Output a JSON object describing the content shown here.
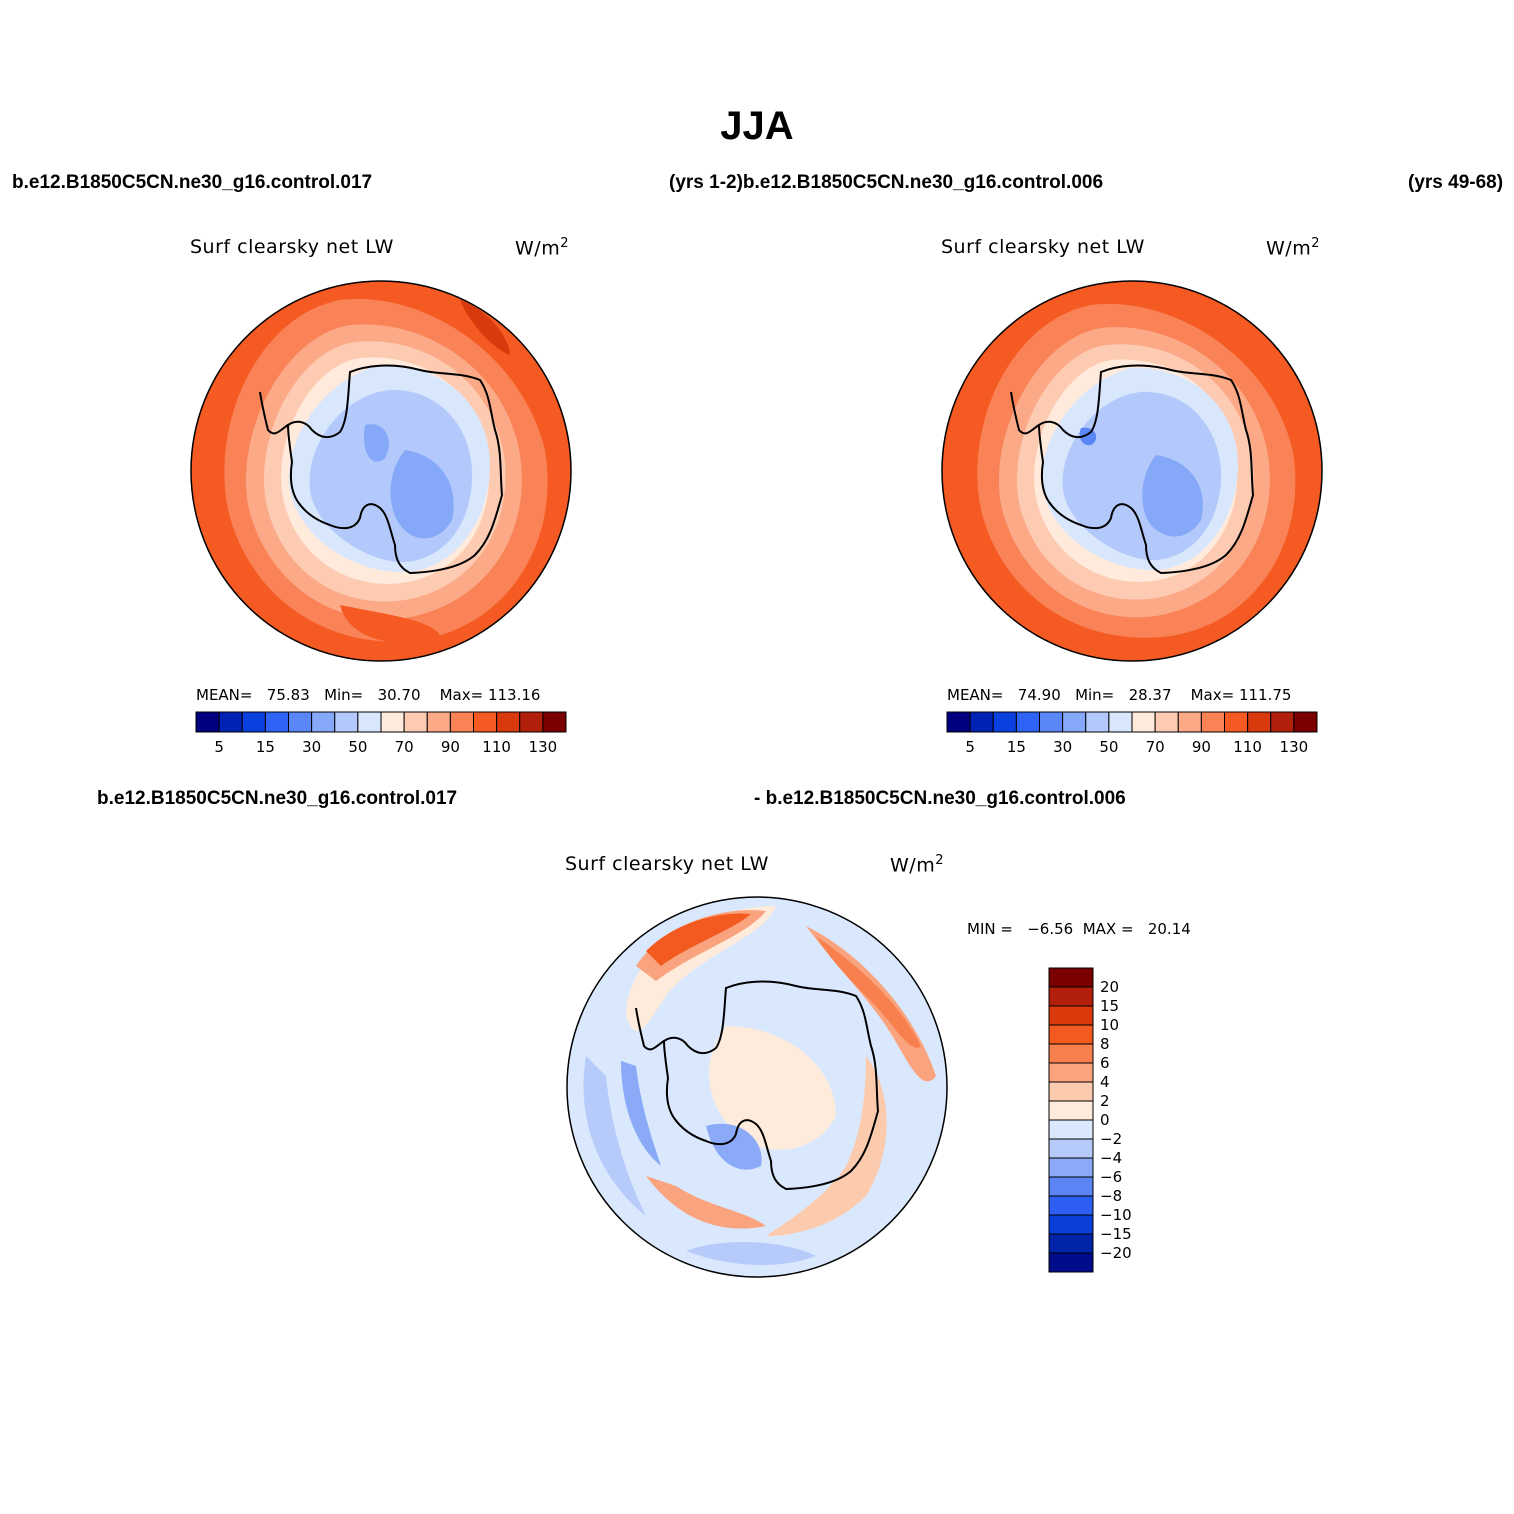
{
  "season_title": "JJA",
  "top_header": {
    "left_case": "b.e12.B1850C5CN.ne30_g16.control.017",
    "years_a_then_case_b": "(yrs 1-2)b.e12.B1850C5CN.ne30_g16.control.006",
    "years_b": "(yrs 49-68)"
  },
  "diff_header": {
    "case_a": "b.e12.B1850C5CN.ne30_g16.control.017",
    "minus_case_b": "- b.e12.B1850C5CN.ne30_g16.control.006"
  },
  "variable_label": "Surf clearsky net LW",
  "units": {
    "base": "W/m",
    "exponent": "2"
  },
  "panels": [
    {
      "id": "case-017",
      "stats": {
        "mean_label": "MEAN=",
        "mean": "75.83",
        "min_label": "Min=",
        "min": "30.70",
        "max_label": "Max=",
        "max": "113.16"
      }
    },
    {
      "id": "case-006",
      "stats": {
        "mean_label": "MEAN=",
        "mean": "74.90",
        "min_label": "Min=",
        "min": "28.37",
        "max_label": "Max=",
        "max": "111.75"
      }
    }
  ],
  "abs_colorbar": {
    "colors": [
      "#00007f",
      "#0022b4",
      "#0a3fe0",
      "#2f63f6",
      "#5a86f7",
      "#86a8f8",
      "#b3c9fb",
      "#d9e7fd",
      "#ffeadb",
      "#fdcbb2",
      "#fba987",
      "#f98256",
      "#f45a22",
      "#d83a0e",
      "#b2200c",
      "#7a0000"
    ],
    "tick_labels": [
      "5",
      "15",
      "30",
      "50",
      "70",
      "90",
      "110",
      "130"
    ]
  },
  "diff_panel": {
    "stats_text": "MIN =   −6.56  MAX =   20.14",
    "colorbar_colors_top_to_bottom": [
      "#7a0000",
      "#b2200c",
      "#dc3a0c",
      "#f25a20",
      "#f8804f",
      "#faa47f",
      "#fccaad",
      "#feebdb",
      "#dae8fd",
      "#b6cbfa",
      "#8aa9f7",
      "#5c84f4",
      "#2d5ff2",
      "#0a3fd8",
      "#0024a8",
      "#000c8a"
    ],
    "tick_labels_top_to_bottom": [
      "20",
      "15",
      "10",
      "8",
      "6",
      "4",
      "2",
      "0",
      "−2",
      "−4",
      "−6",
      "−8",
      "−10",
      "−15",
      "−20"
    ]
  }
}
